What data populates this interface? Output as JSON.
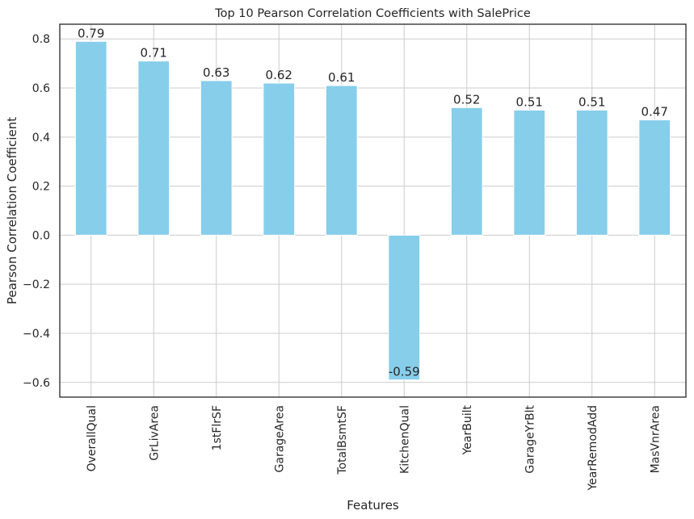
{
  "chart_data": {
    "type": "bar",
    "title": "Top 10 Pearson Correlation Coefficients with SalePrice",
    "xlabel": "Features",
    "ylabel": "Pearson Correlation Coefficient",
    "categories": [
      "OverallQual",
      "GrLivArea",
      "1stFlrSF",
      "GarageArea",
      "TotalBsmtSF",
      "KitchenQual",
      "YearBuilt",
      "GarageYrBlt",
      "YearRemodAdd",
      "MasVnrArea"
    ],
    "values": [
      0.79,
      0.71,
      0.63,
      0.62,
      0.61,
      -0.59,
      0.52,
      0.51,
      0.51,
      0.47
    ],
    "value_labels": [
      "0.79",
      "0.71",
      "0.63",
      "0.62",
      "0.61",
      "-0.59",
      "0.52",
      "0.51",
      "0.51",
      "0.47"
    ],
    "yticks": [
      -0.6,
      -0.4,
      -0.2,
      0.0,
      0.2,
      0.4,
      0.6,
      0.8
    ],
    "ytick_labels": [
      "−0.6",
      "−0.4",
      "−0.2",
      "0.0",
      "0.2",
      "0.4",
      "0.6",
      "0.8"
    ],
    "ylim": [
      -0.66,
      0.86
    ],
    "grid": true,
    "bar_color": "#87ceeb"
  }
}
